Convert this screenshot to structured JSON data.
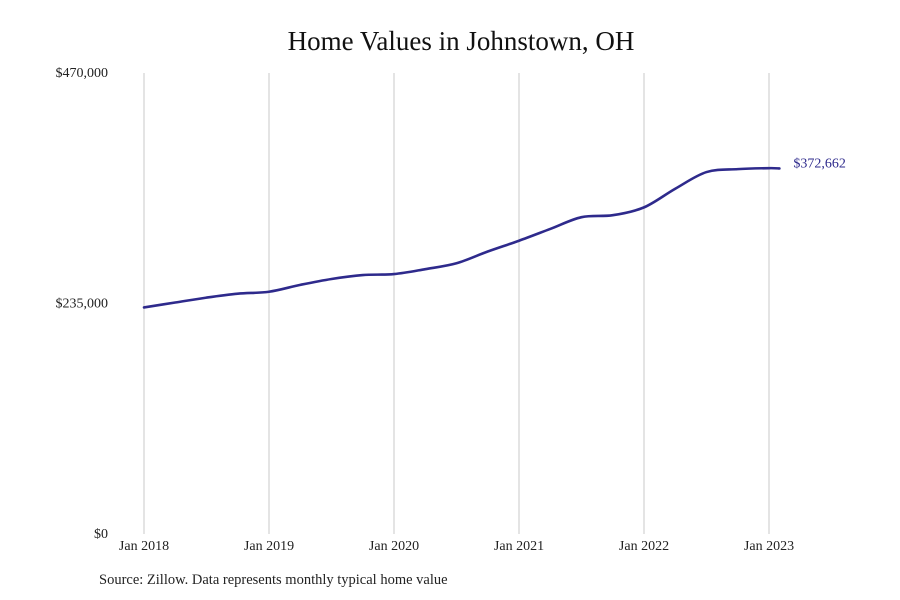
{
  "chart_data": {
    "type": "line",
    "title": "Home Values in Johnstown, OH",
    "xlabel": "",
    "ylabel": "",
    "ylim": [
      0,
      470000
    ],
    "y_ticks": [
      {
        "value": 0,
        "label": "$0"
      },
      {
        "value": 235000,
        "label": "$235,000"
      },
      {
        "value": 470000,
        "label": "$470,000"
      }
    ],
    "x_ticks": [
      {
        "value": "2018-01",
        "label": "Jan 2018"
      },
      {
        "value": "2019-01",
        "label": "Jan 2019"
      },
      {
        "value": "2020-01",
        "label": "Jan 2020"
      },
      {
        "value": "2021-01",
        "label": "Jan 2021"
      },
      {
        "value": "2022-01",
        "label": "Jan 2022"
      },
      {
        "value": "2023-01",
        "label": "Jan 2023"
      }
    ],
    "grid": "vertical",
    "line_color": "#2e2a8c",
    "grid_color": "#c9c9c9",
    "end_label": "$372,662",
    "series": [
      {
        "x": [
          "2018-01",
          "2018-04",
          "2018-07",
          "2018-10",
          "2019-01",
          "2019-04",
          "2019-07",
          "2019-10",
          "2020-01",
          "2020-04",
          "2020-07",
          "2020-10",
          "2021-01",
          "2021-04",
          "2021-07",
          "2021-10",
          "2022-01",
          "2022-04",
          "2022-07",
          "2022-10",
          "2023-01",
          "2023-02"
        ],
        "y": [
          231000,
          236000,
          241000,
          245000,
          247000,
          254000,
          260000,
          264000,
          265000,
          270000,
          276000,
          288000,
          299000,
          311000,
          323000,
          325000,
          333000,
          352000,
          369000,
          372000,
          373000,
          372662
        ]
      }
    ]
  },
  "footer": {
    "source": "Source: Zillow. Data represents monthly typical home value"
  }
}
